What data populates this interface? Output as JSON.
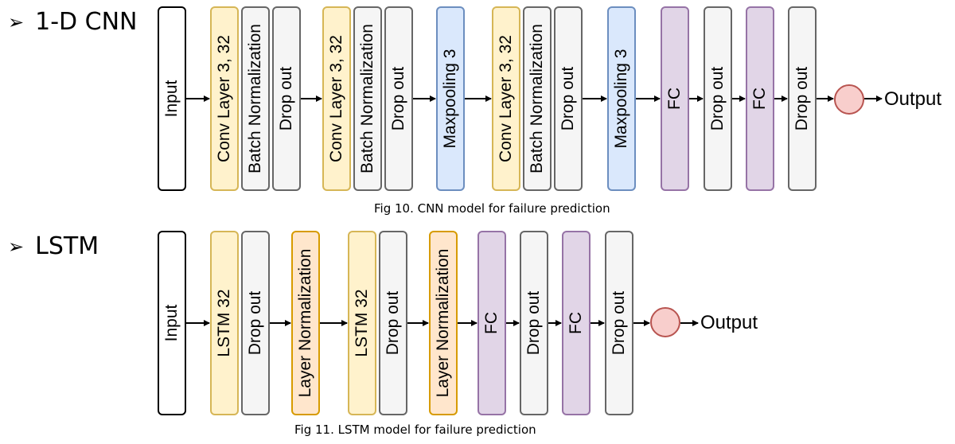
{
  "cnn": {
    "title": "1-D CNN",
    "bullet": "➢",
    "input_label": "Input",
    "layers": [
      {
        "label": "Conv Layer 3, 32",
        "kind": "conv"
      },
      {
        "label": "Batch Normalization",
        "kind": "bn"
      },
      {
        "label": "Drop out",
        "kind": "dropout"
      },
      {
        "label": "Conv Layer 3, 32",
        "kind": "conv"
      },
      {
        "label": "Batch Normalization",
        "kind": "bn"
      },
      {
        "label": "Drop out",
        "kind": "dropout"
      },
      {
        "label": "Maxpooling 3",
        "kind": "pool"
      },
      {
        "label": "Conv Layer 3, 32",
        "kind": "conv"
      },
      {
        "label": "Batch Normalization",
        "kind": "bn"
      },
      {
        "label": "Drop out",
        "kind": "dropout"
      },
      {
        "label": "Maxpooling 3",
        "kind": "pool"
      },
      {
        "label": "FC",
        "kind": "fc"
      },
      {
        "label": "Drop out",
        "kind": "dropout"
      },
      {
        "label": "FC",
        "kind": "fc"
      },
      {
        "label": "Drop out",
        "kind": "dropout"
      }
    ],
    "output_label": "Output",
    "caption": "Fig 10. CNN model for failure prediction"
  },
  "lstm": {
    "title": "LSTM",
    "bullet": "➢",
    "input_label": "Input",
    "layers": [
      {
        "label": "LSTM 32",
        "kind": "lstm"
      },
      {
        "label": "Drop out",
        "kind": "dropout"
      },
      {
        "label": "Layer Normalization",
        "kind": "ln"
      },
      {
        "label": "LSTM 32",
        "kind": "lstm"
      },
      {
        "label": "Drop out",
        "kind": "dropout"
      },
      {
        "label": "Layer Normalization",
        "kind": "ln"
      },
      {
        "label": "FC",
        "kind": "fc"
      },
      {
        "label": "Drop out",
        "kind": "dropout"
      },
      {
        "label": "FC",
        "kind": "fc"
      },
      {
        "label": "Drop out",
        "kind": "dropout"
      }
    ],
    "output_label": "Output",
    "caption": "Fig 11. LSTM model for failure prediction"
  },
  "colors": {
    "conv": "#fff2cc",
    "lstm": "#fff2cc",
    "bn": "#f5f5f5",
    "dropout": "#f5f5f5",
    "pool": "#dae8fc",
    "fc": "#e1d5e7",
    "ln": "#ffe6cc",
    "output_node": "#f8cecc"
  }
}
